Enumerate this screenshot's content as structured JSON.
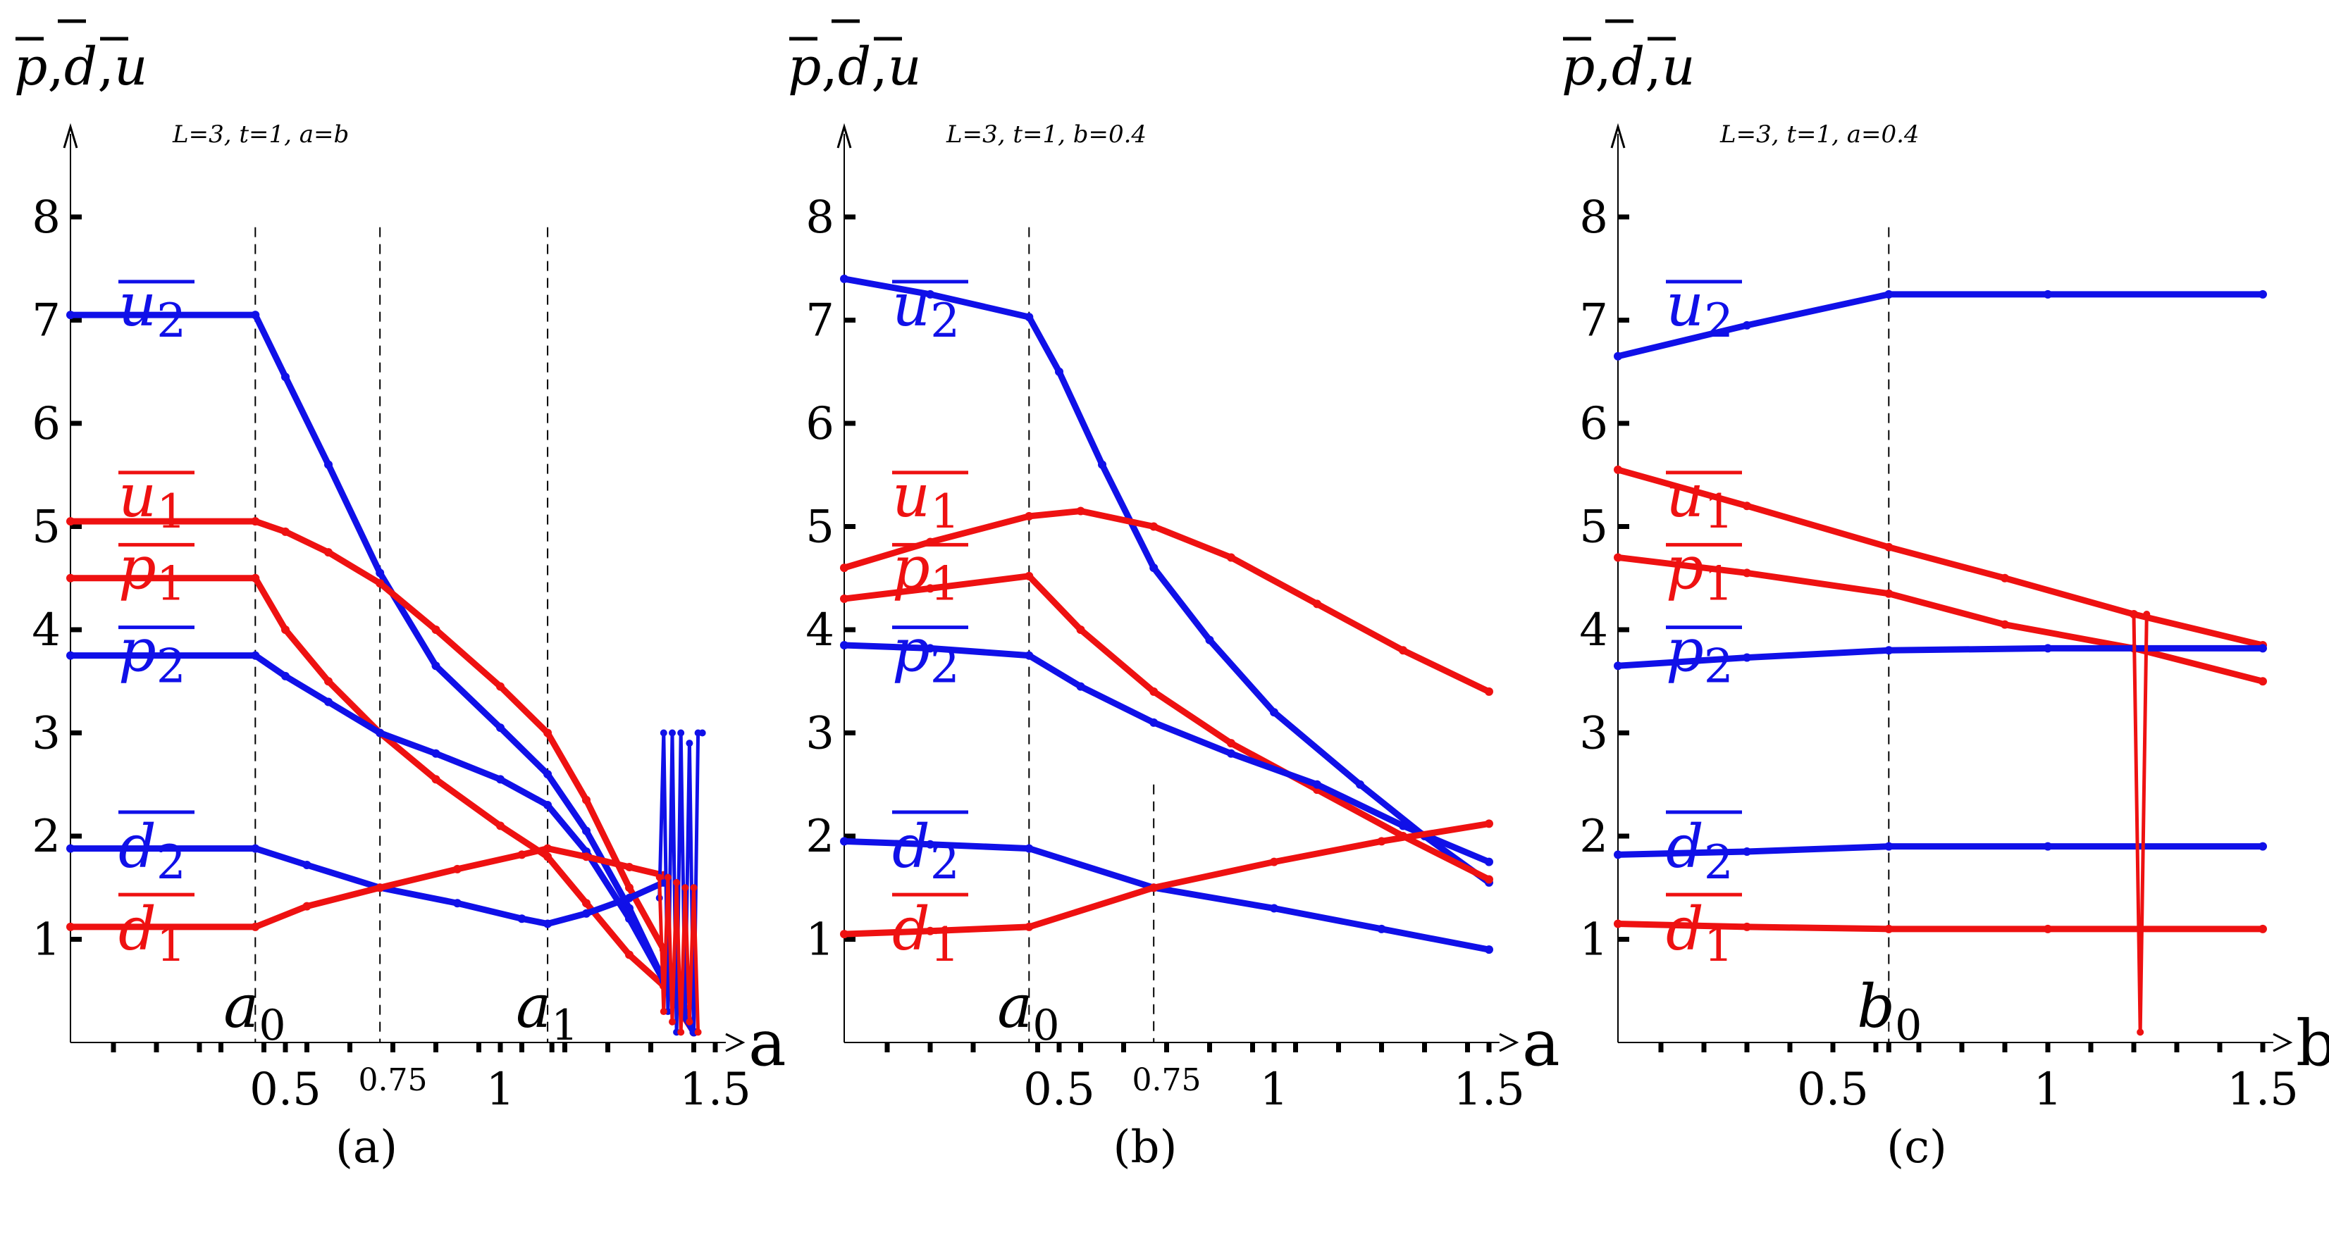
{
  "chart_data": [
    {
      "type": "line",
      "panel_label": "(a)",
      "ylabel": [
        "p",
        "d",
        "u"
      ],
      "xlabel": "a",
      "params": "L=3, t=1, a=b",
      "xlim": [
        0,
        1.55
      ],
      "ylim": [
        0,
        9
      ],
      "yticks": [
        1,
        2,
        3,
        4,
        5,
        6,
        7,
        8
      ],
      "xtick_labels": [
        {
          "value": 0.5,
          "label": "0.5",
          "small": false
        },
        {
          "value": 0.75,
          "label": "0.75",
          "small": true
        },
        {
          "value": 1.0,
          "label": "1",
          "small": false
        },
        {
          "value": 1.5,
          "label": "1.5",
          "small": false
        }
      ],
      "xtick_marks": [
        0.1,
        0.2,
        0.3,
        0.35,
        0.45,
        0.55,
        0.65,
        0.75,
        0.85,
        0.95,
        1.05,
        1.12,
        1.15,
        1.25,
        1.35,
        1.45
      ],
      "vlines": [
        {
          "x": 0.43,
          "label": "a",
          "sub": "0"
        },
        {
          "x": 0.72,
          "label": "",
          "sub": ""
        },
        {
          "x": 1.11,
          "label": "a",
          "sub": "1"
        }
      ],
      "series": [
        {
          "name": "u2",
          "base": "u",
          "sub": "2",
          "color": "#1010e8",
          "label_y": 7.1,
          "points": [
            [
              0,
              7.05
            ],
            [
              0.43,
              7.05
            ],
            [
              0.5,
              6.45
            ],
            [
              0.6,
              5.6
            ],
            [
              0.72,
              4.55
            ],
            [
              0.85,
              3.65
            ],
            [
              1.0,
              3.05
            ],
            [
              1.11,
              2.6
            ],
            [
              1.2,
              2.05
            ],
            [
              1.3,
              1.3
            ],
            [
              1.38,
              0.6
            ],
            [
              1.45,
              0.1
            ]
          ]
        },
        {
          "name": "u1",
          "base": "u",
          "sub": "1",
          "color": "#ee1111",
          "label_y": 5.25,
          "points": [
            [
              0,
              5.05
            ],
            [
              0.43,
              5.05
            ],
            [
              0.5,
              4.95
            ],
            [
              0.6,
              4.75
            ],
            [
              0.72,
              4.45
            ],
            [
              0.85,
              4.0
            ],
            [
              1.0,
              3.45
            ],
            [
              1.11,
              3.0
            ],
            [
              1.2,
              2.35
            ],
            [
              1.3,
              1.5
            ],
            [
              1.38,
              0.9
            ],
            [
              1.45,
              0.1
            ]
          ]
        },
        {
          "name": "p1",
          "base": "p",
          "sub": "1",
          "color": "#ee1111",
          "label_y": 4.55,
          "points": [
            [
              0,
              4.5
            ],
            [
              0.43,
              4.5
            ],
            [
              0.5,
              4.0
            ],
            [
              0.6,
              3.5
            ],
            [
              0.72,
              3.0
            ],
            [
              0.85,
              2.55
            ],
            [
              1.0,
              2.1
            ],
            [
              1.11,
              1.8
            ],
            [
              1.2,
              1.35
            ],
            [
              1.3,
              0.85
            ],
            [
              1.38,
              0.55
            ],
            [
              1.45,
              0.1
            ]
          ]
        },
        {
          "name": "p2",
          "base": "p",
          "sub": "2",
          "color": "#1010e8",
          "label_y": 3.75,
          "points": [
            [
              0,
              3.75
            ],
            [
              0.43,
              3.75
            ],
            [
              0.5,
              3.55
            ],
            [
              0.6,
              3.3
            ],
            [
              0.72,
              3.0
            ],
            [
              0.85,
              2.8
            ],
            [
              1.0,
              2.55
            ],
            [
              1.11,
              2.3
            ],
            [
              1.2,
              1.85
            ],
            [
              1.3,
              1.2
            ],
            [
              1.38,
              0.6
            ],
            [
              1.45,
              0.1
            ]
          ]
        },
        {
          "name": "d2",
          "base": "d",
          "sub": "2",
          "color": "#1010e8",
          "label_y": 1.85,
          "points": [
            [
              0,
              1.88
            ],
            [
              0.43,
              1.88
            ],
            [
              0.55,
              1.72
            ],
            [
              0.72,
              1.5
            ],
            [
              0.9,
              1.35
            ],
            [
              1.05,
              1.2
            ],
            [
              1.11,
              1.15
            ],
            [
              1.2,
              1.25
            ],
            [
              1.3,
              1.4
            ],
            [
              1.38,
              1.55
            ]
          ]
        },
        {
          "name": "d1",
          "base": "d",
          "sub": "1",
          "color": "#ee1111",
          "label_y": 1.05,
          "points": [
            [
              0,
              1.12
            ],
            [
              0.43,
              1.12
            ],
            [
              0.55,
              1.32
            ],
            [
              0.72,
              1.5
            ],
            [
              0.9,
              1.68
            ],
            [
              1.05,
              1.82
            ],
            [
              1.11,
              1.88
            ],
            [
              1.2,
              1.8
            ],
            [
              1.3,
              1.7
            ],
            [
              1.38,
              1.62
            ]
          ]
        },
        {
          "name": "oscillation-blue",
          "base": "",
          "sub": "",
          "color": "#1010e8",
          "label_y": null,
          "noise": true,
          "points": [
            [
              1.37,
              1.4
            ],
            [
              1.38,
              3.0
            ],
            [
              1.39,
              0.3
            ],
            [
              1.4,
              3.0
            ],
            [
              1.41,
              0.1
            ],
            [
              1.42,
              3.0
            ],
            [
              1.43,
              0.3
            ],
            [
              1.44,
              2.9
            ],
            [
              1.45,
              0.1
            ],
            [
              1.46,
              3.0
            ],
            [
              1.47,
              3.0
            ]
          ]
        },
        {
          "name": "oscillation-red",
          "base": "",
          "sub": "",
          "color": "#ee1111",
          "label_y": null,
          "noise": true,
          "points": [
            [
              1.37,
              1.6
            ],
            [
              1.38,
              0.3
            ],
            [
              1.39,
              1.6
            ],
            [
              1.4,
              0.2
            ],
            [
              1.41,
              1.55
            ],
            [
              1.42,
              0.1
            ],
            [
              1.43,
              1.5
            ],
            [
              1.44,
              0.2
            ],
            [
              1.45,
              1.5
            ],
            [
              1.46,
              0.1
            ]
          ]
        }
      ]
    },
    {
      "type": "line",
      "panel_label": "(b)",
      "ylabel": [
        "p",
        "d",
        "u"
      ],
      "xlabel": "a",
      "params": "L=3, t=1, b=0.4",
      "xlim": [
        0,
        1.55
      ],
      "ylim": [
        0,
        9
      ],
      "yticks": [
        1,
        2,
        3,
        4,
        5,
        6,
        7,
        8
      ],
      "xtick_labels": [
        {
          "value": 0.5,
          "label": "0.5",
          "small": false
        },
        {
          "value": 0.75,
          "label": "0.75",
          "small": true
        },
        {
          "value": 1.0,
          "label": "1",
          "small": false
        },
        {
          "value": 1.5,
          "label": "1.5",
          "small": false
        }
      ],
      "xtick_marks": [
        0.1,
        0.2,
        0.3,
        0.45,
        0.55,
        0.65,
        0.75,
        0.85,
        0.95,
        1.05,
        1.15,
        1.25,
        1.35,
        1.45
      ],
      "vlines": [
        {
          "x": 0.43,
          "label": "a",
          "sub": "0"
        },
        {
          "x": 0.72,
          "label": "",
          "sub": "",
          "from": 0,
          "to": 2.5
        }
      ],
      "series": [
        {
          "name": "u2",
          "base": "u",
          "sub": "2",
          "color": "#1010e8",
          "label_y": 7.1,
          "points": [
            [
              0,
              7.4
            ],
            [
              0.2,
              7.25
            ],
            [
              0.43,
              7.03
            ],
            [
              0.5,
              6.5
            ],
            [
              0.6,
              5.6
            ],
            [
              0.72,
              4.6
            ],
            [
              0.85,
              3.9
            ],
            [
              1.0,
              3.2
            ],
            [
              1.2,
              2.5
            ],
            [
              1.35,
              2.0
            ],
            [
              1.5,
              1.55
            ]
          ]
        },
        {
          "name": "u1",
          "base": "u",
          "sub": "1",
          "color": "#ee1111",
          "label_y": 5.25,
          "points": [
            [
              0,
              4.6
            ],
            [
              0.2,
              4.85
            ],
            [
              0.43,
              5.1
            ],
            [
              0.55,
              5.15
            ],
            [
              0.72,
              5.0
            ],
            [
              0.9,
              4.7
            ],
            [
              1.1,
              4.25
            ],
            [
              1.3,
              3.8
            ],
            [
              1.5,
              3.4
            ]
          ]
        },
        {
          "name": "p1",
          "base": "p",
          "sub": "1",
          "color": "#ee1111",
          "label_y": 4.55,
          "points": [
            [
              0,
              4.3
            ],
            [
              0.2,
              4.4
            ],
            [
              0.43,
              4.52
            ],
            [
              0.55,
              4.0
            ],
            [
              0.72,
              3.4
            ],
            [
              0.9,
              2.9
            ],
            [
              1.1,
              2.45
            ],
            [
              1.3,
              2.0
            ],
            [
              1.5,
              1.58
            ]
          ]
        },
        {
          "name": "p2",
          "base": "p",
          "sub": "2",
          "color": "#1010e8",
          "label_y": 3.75,
          "points": [
            [
              0,
              3.85
            ],
            [
              0.2,
              3.82
            ],
            [
              0.43,
              3.75
            ],
            [
              0.55,
              3.45
            ],
            [
              0.72,
              3.1
            ],
            [
              0.9,
              2.8
            ],
            [
              1.1,
              2.5
            ],
            [
              1.3,
              2.1
            ],
            [
              1.5,
              1.75
            ]
          ]
        },
        {
          "name": "d2",
          "base": "d",
          "sub": "2",
          "color": "#1010e8",
          "label_y": 1.85,
          "points": [
            [
              0,
              1.95
            ],
            [
              0.2,
              1.92
            ],
            [
              0.43,
              1.88
            ],
            [
              0.72,
              1.5
            ],
            [
              1.0,
              1.3
            ],
            [
              1.25,
              1.1
            ],
            [
              1.5,
              0.9
            ]
          ]
        },
        {
          "name": "d1",
          "base": "d",
          "sub": "1",
          "color": "#ee1111",
          "label_y": 1.05,
          "points": [
            [
              0,
              1.05
            ],
            [
              0.2,
              1.08
            ],
            [
              0.43,
              1.12
            ],
            [
              0.72,
              1.5
            ],
            [
              1.0,
              1.75
            ],
            [
              1.25,
              1.95
            ],
            [
              1.5,
              2.12
            ]
          ]
        }
      ]
    },
    {
      "type": "line",
      "panel_label": "(c)",
      "ylabel": [
        "p",
        "d",
        "u"
      ],
      "xlabel": "b",
      "params": "L=3, t=1, a=0.4",
      "xlim": [
        0,
        1.55
      ],
      "ylim": [
        0,
        9
      ],
      "yticks": [
        1,
        2,
        3,
        4,
        5,
        6,
        7,
        8
      ],
      "xtick_labels": [
        {
          "value": 0.5,
          "label": "0.5",
          "small": false
        },
        {
          "value": 1.0,
          "label": "1",
          "small": false
        },
        {
          "value": 1.5,
          "label": "1.5",
          "small": false
        }
      ],
      "xtick_marks": [
        0.1,
        0.2,
        0.3,
        0.4,
        0.6,
        0.63,
        0.7,
        0.8,
        0.9,
        1.1,
        1.2,
        1.3,
        1.4
      ],
      "vlines": [
        {
          "x": 0.63,
          "label": "b",
          "sub": "0"
        }
      ],
      "series": [
        {
          "name": "u2",
          "base": "u",
          "sub": "2",
          "color": "#1010e8",
          "label_y": 7.1,
          "points": [
            [
              0,
              6.65
            ],
            [
              0.3,
              6.95
            ],
            [
              0.63,
              7.25
            ],
            [
              1.0,
              7.25
            ],
            [
              1.5,
              7.25
            ]
          ]
        },
        {
          "name": "u1",
          "base": "u",
          "sub": "1",
          "color": "#ee1111",
          "label_y": 5.25,
          "points": [
            [
              0,
              5.55
            ],
            [
              0.3,
              5.2
            ],
            [
              0.63,
              4.8
            ],
            [
              0.9,
              4.5
            ],
            [
              1.2,
              4.15
            ],
            [
              1.5,
              3.85
            ]
          ]
        },
        {
          "name": "p1",
          "base": "p",
          "sub": "1",
          "color": "#ee1111",
          "label_y": 4.55,
          "points": [
            [
              0,
              4.7
            ],
            [
              0.3,
              4.55
            ],
            [
              0.63,
              4.35
            ],
            [
              0.9,
              4.05
            ],
            [
              1.2,
              3.82
            ],
            [
              1.5,
              3.5
            ]
          ]
        },
        {
          "name": "p2",
          "base": "p",
          "sub": "2",
          "color": "#1010e8",
          "label_y": 3.75,
          "points": [
            [
              0,
              3.65
            ],
            [
              0.3,
              3.73
            ],
            [
              0.63,
              3.8
            ],
            [
              1.0,
              3.82
            ],
            [
              1.5,
              3.82
            ]
          ]
        },
        {
          "name": "d2",
          "base": "d",
          "sub": "2",
          "color": "#1010e8",
          "label_y": 1.85,
          "points": [
            [
              0,
              1.82
            ],
            [
              0.3,
              1.85
            ],
            [
              0.63,
              1.9
            ],
            [
              1.0,
              1.9
            ],
            [
              1.5,
              1.9
            ]
          ]
        },
        {
          "name": "d1",
          "base": "d",
          "sub": "1",
          "color": "#ee1111",
          "label_y": 1.05,
          "points": [
            [
              0,
              1.15
            ],
            [
              0.3,
              1.12
            ],
            [
              0.63,
              1.1
            ],
            [
              1.0,
              1.1
            ],
            [
              1.5,
              1.1
            ]
          ]
        },
        {
          "name": "spike-red",
          "base": "",
          "sub": "",
          "color": "#ee1111",
          "label_y": null,
          "noise": true,
          "points": [
            [
              1.2,
              4.15
            ],
            [
              1.215,
              0.1
            ],
            [
              1.23,
              4.15
            ]
          ]
        }
      ]
    }
  ]
}
